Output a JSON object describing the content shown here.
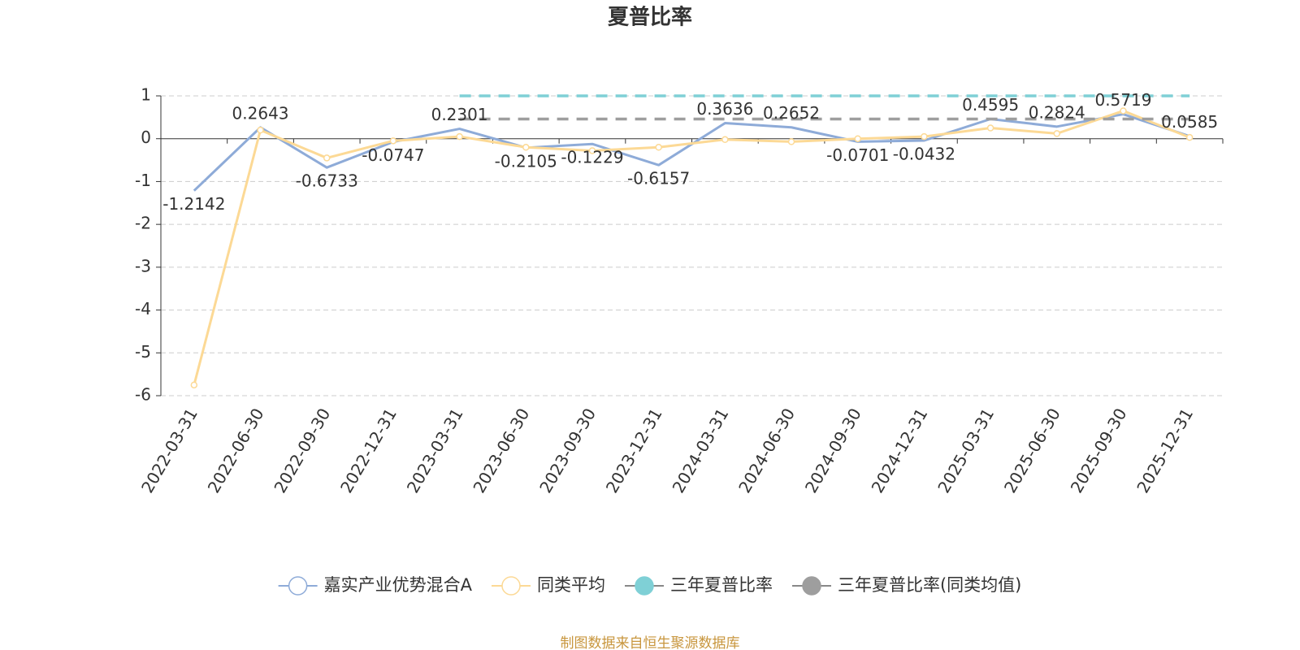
{
  "chart_data": {
    "type": "line",
    "title": "夏普比率",
    "categories": [
      "2022-03-31",
      "2022-06-30",
      "2022-09-30",
      "2022-12-31",
      "2023-03-31",
      "2023-06-30",
      "2023-09-30",
      "2023-12-31",
      "2024-03-31",
      "2024-06-30",
      "2024-09-30",
      "2024-12-31",
      "2025-03-31",
      "2025-06-30",
      "2025-09-30",
      "2025-12-31"
    ],
    "series": [
      {
        "name": "嘉实产业优势混合A",
        "color": "#8eabd8",
        "values": [
          -1.2142,
          0.2643,
          -0.6733,
          -0.0747,
          0.2301,
          -0.2105,
          -0.1229,
          -0.6157,
          0.3636,
          0.2652,
          -0.0701,
          -0.0432,
          0.4595,
          0.2824,
          0.5719,
          0.0585
        ]
      },
      {
        "name": "同类平均",
        "color": "#fcd995",
        "values": [
          -5.75,
          0.2,
          -0.45,
          -0.05,
          0.05,
          -0.2,
          -0.28,
          -0.2,
          -0.02,
          -0.07,
          0.0,
          0.05,
          0.25,
          0.12,
          0.65,
          0.03
        ]
      },
      {
        "name": "三年夏普比率",
        "color": "#7fd0d6",
        "values": [
          null,
          null,
          null,
          null,
          1.0,
          1.0,
          1.0,
          1.0,
          1.0,
          1.0,
          1.0,
          1.0,
          1.0,
          1.0,
          1.0,
          1.0
        ]
      },
      {
        "name": "三年夏普比率(同类均值)",
        "color": "#9e9e9e",
        "values": [
          null,
          null,
          null,
          null,
          0.46,
          0.46,
          0.46,
          0.46,
          0.46,
          0.46,
          0.46,
          0.46,
          0.46,
          0.46,
          0.46,
          0.46
        ]
      }
    ],
    "ylim": [
      -6,
      1
    ],
    "yticks": [
      -6,
      -5,
      -4,
      -3,
      -2,
      -1,
      0,
      1
    ],
    "grid": true,
    "source": "制图数据来自恒生聚源数据库"
  }
}
